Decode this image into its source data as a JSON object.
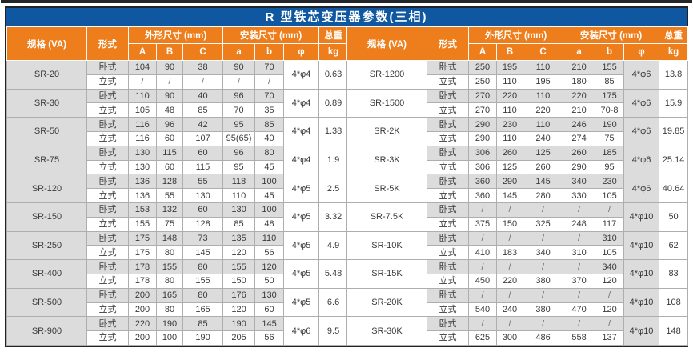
{
  "title": "R 型铁芯变压器参数(三相)",
  "colors": {
    "title_bar_blue": "#0f57a0",
    "header_orange": "#ee7d1b",
    "shade_gray": "#dcdcdc",
    "border_dark": "#1d2329"
  },
  "headers": {
    "spec": "规格 (VA)",
    "form": "形式",
    "outline_group": "外形尺寸 (mm)",
    "install_group": "安装尺寸 (mm)",
    "weight_group": "总重",
    "sub_cols": [
      "A",
      "B",
      "C",
      "a",
      "b",
      "φ"
    ],
    "weight_unit": "kg"
  },
  "form_labels": [
    "卧式",
    "立式"
  ],
  "left_groups": [
    {
      "spec": "SR-20",
      "horizontal": [
        "104",
        "90",
        "38",
        "90",
        "70"
      ],
      "vertical": [
        "/",
        "/",
        "/",
        "/",
        "/"
      ],
      "phi": "4*φ4",
      "kg": "0.63"
    },
    {
      "spec": "SR-30",
      "horizontal": [
        "110",
        "90",
        "40",
        "96",
        "70"
      ],
      "vertical": [
        "105",
        "48",
        "85",
        "70",
        "35"
      ],
      "phi": "4*φ4",
      "kg": "0.89"
    },
    {
      "spec": "SR-50",
      "horizontal": [
        "116",
        "96",
        "42",
        "95",
        "85"
      ],
      "vertical": [
        "116",
        "60",
        "107",
        "95(65)",
        "40"
      ],
      "phi": "4*φ4",
      "kg": "1.38"
    },
    {
      "spec": "SR-75",
      "horizontal": [
        "130",
        "115",
        "60",
        "96",
        "80"
      ],
      "vertical": [
        "130",
        "60",
        "115",
        "95",
        "45"
      ],
      "phi": "4*φ4",
      "kg": "1.9"
    },
    {
      "spec": "SR-120",
      "horizontal": [
        "136",
        "128",
        "55",
        "118",
        "100"
      ],
      "vertical": [
        "136",
        "55",
        "130",
        "110",
        "45"
      ],
      "phi": "4*φ5",
      "kg": "2.5"
    },
    {
      "spec": "SR-150",
      "horizontal": [
        "153",
        "132",
        "60",
        "130",
        "100"
      ],
      "vertical": [
        "155",
        "75",
        "128",
        "85",
        "48"
      ],
      "phi": "4*φ5",
      "kg": "3.32"
    },
    {
      "spec": "SR-250",
      "horizontal": [
        "175",
        "148",
        "73",
        "135",
        "110"
      ],
      "vertical": [
        "175",
        "80",
        "145",
        "120",
        "56"
      ],
      "phi": "4*φ5",
      "kg": "4.9"
    },
    {
      "spec": "SR-400",
      "horizontal": [
        "178",
        "155",
        "80",
        "155",
        "120"
      ],
      "vertical": [
        "178",
        "80",
        "155",
        "150",
        "50"
      ],
      "phi": "4*φ5",
      "kg": "5.48"
    },
    {
      "spec": "SR-500",
      "horizontal": [
        "200",
        "165",
        "80",
        "176",
        "130"
      ],
      "vertical": [
        "200",
        "80",
        "165",
        "120",
        "60"
      ],
      "phi": "4*φ5",
      "kg": "6.6"
    },
    {
      "spec": "SR-900",
      "horizontal": [
        "220",
        "190",
        "85",
        "190",
        "145"
      ],
      "vertical": [
        "200",
        "100",
        "190",
        "205",
        "56"
      ],
      "phi": "4*φ6",
      "kg": "9.5"
    }
  ],
  "right_groups": [
    {
      "spec": "SR-1200",
      "horizontal": [
        "250",
        "195",
        "110",
        "210",
        "155"
      ],
      "vertical": [
        "250",
        "110",
        "195",
        "180",
        "85"
      ],
      "phi": "4*φ6",
      "kg": "13.8"
    },
    {
      "spec": "SR-1500",
      "horizontal": [
        "270",
        "220",
        "110",
        "220",
        "175"
      ],
      "vertical": [
        "270",
        "110",
        "220",
        "210",
        "70-8"
      ],
      "phi": "4*φ6",
      "kg": "15.9"
    },
    {
      "spec": "SR-2K",
      "horizontal": [
        "290",
        "230",
        "110",
        "246",
        "190"
      ],
      "vertical": [
        "290",
        "110",
        "240",
        "274",
        "75"
      ],
      "phi": "4*φ6",
      "kg": "19.85"
    },
    {
      "spec": "SR-3K",
      "horizontal": [
        "306",
        "260",
        "125",
        "260",
        "185"
      ],
      "vertical": [
        "306",
        "125",
        "260",
        "290",
        "95"
      ],
      "phi": "4*φ6",
      "kg": "25.14"
    },
    {
      "spec": "SR-5K",
      "horizontal": [
        "360",
        "290",
        "145",
        "340",
        "230"
      ],
      "vertical": [
        "360",
        "145",
        "280",
        "330",
        "105"
      ],
      "phi": "4*φ6",
      "kg": "40.64"
    },
    {
      "spec": "SR-7.5K",
      "horizontal": [
        "/",
        "/",
        "/",
        "/",
        "/"
      ],
      "vertical": [
        "375",
        "150",
        "325",
        "248",
        "117"
      ],
      "phi": "4*φ10",
      "kg": "50"
    },
    {
      "spec": "SR-10K",
      "horizontal": [
        "/",
        "/",
        "/",
        "/",
        "310"
      ],
      "vertical": [
        "410",
        "183",
        "340",
        "310",
        "105"
      ],
      "phi": "4*φ10",
      "kg": "62"
    },
    {
      "spec": "SR-15K",
      "horizontal": [
        "/",
        "/",
        "/",
        "/",
        "340"
      ],
      "vertical": [
        "450",
        "220",
        "380",
        "370",
        "120"
      ],
      "phi": "4*φ10",
      "kg": "83"
    },
    {
      "spec": "SR-20K",
      "horizontal": [
        "/",
        "/",
        "/",
        "/",
        "/"
      ],
      "vertical": [
        "540",
        "240",
        "380",
        "470",
        "120"
      ],
      "phi": "4*φ10",
      "kg": "108"
    },
    {
      "spec": "SR-30K",
      "horizontal": [
        "/",
        "/",
        "/",
        "/",
        "/"
      ],
      "vertical": [
        "625",
        "300",
        "486",
        "558",
        "137"
      ],
      "phi": "4*φ10",
      "kg": "148"
    }
  ]
}
